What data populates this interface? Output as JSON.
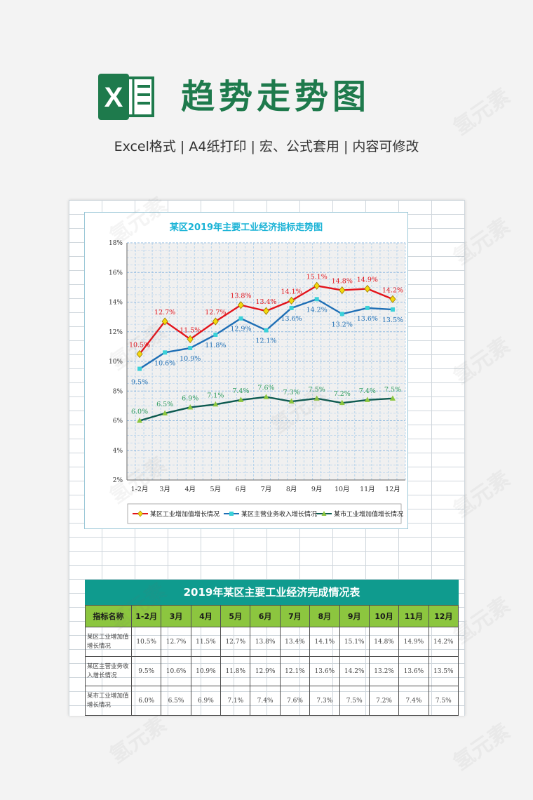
{
  "header": {
    "headline": "趋势走势图",
    "subline": "Excel格式 |  A4纸打印 | 宏、公式套用 | 内容可修改",
    "logo_letter": "X",
    "logo_icon": "excel-logo-icon"
  },
  "chart_data": {
    "type": "line",
    "title": "某区2019年主要工业经济指标走势图",
    "categories": [
      "1-2月",
      "3月",
      "4月",
      "5月",
      "6月",
      "7月",
      "8月",
      "9月",
      "10月",
      "11月",
      "12月"
    ],
    "y_ticks": [
      "2%",
      "4%",
      "6%",
      "8%",
      "10%",
      "12%",
      "14%",
      "16%",
      "18%"
    ],
    "ylim": [
      2,
      18
    ],
    "grid": true,
    "legend_position": "bottom",
    "series": [
      {
        "name": "某区工业增加值增长情况",
        "color": "#e3141b",
        "marker": "diamond",
        "marker_color": "#f4d80d",
        "values": [
          10.5,
          12.7,
          11.5,
          12.7,
          13.8,
          13.4,
          14.1,
          15.1,
          14.8,
          14.9,
          14.2
        ],
        "labels": [
          "10.5%",
          "12.7%",
          "11.5%",
          "12.7%",
          "13.8%",
          "13.4%",
          "14.1%",
          "15.1%",
          "14.8%",
          "14.9%",
          "14.2%"
        ]
      },
      {
        "name": "某区主营业务收入增长情况",
        "color": "#1f6fb5",
        "marker": "square",
        "marker_color": "#3ad1d9",
        "values": [
          9.5,
          10.6,
          10.9,
          11.8,
          12.9,
          12.1,
          13.6,
          14.2,
          13.2,
          13.6,
          13.5
        ],
        "labels": [
          "9.5%",
          "10.6%",
          "10.9%",
          "11.8%",
          "12.9%",
          "12.1%",
          "13.6%",
          "14.2%",
          "13.2%",
          "13.6%",
          "13.5%"
        ]
      },
      {
        "name": "某市工业增加值增长情况",
        "color": "#0d5a4f",
        "marker": "triangle",
        "marker_color": "#8cc63f",
        "values": [
          6.0,
          6.5,
          6.9,
          7.1,
          7.4,
          7.6,
          7.3,
          7.5,
          7.2,
          7.4,
          7.5
        ],
        "labels": [
          "6.0%",
          "6.5%",
          "6.9%",
          "7.1%",
          "7.4%",
          "7.6%",
          "7.3%",
          "7.5%",
          "7.2%",
          "7.4%",
          "7.5%"
        ]
      }
    ]
  },
  "table": {
    "title": "2019年某区主要工业经济完成情况表",
    "header_first": "指标名称",
    "months": [
      "1-2月",
      "3月",
      "4月",
      "5月",
      "6月",
      "7月",
      "8月",
      "9月",
      "10月",
      "11月",
      "12月"
    ],
    "rows": [
      {
        "name": "某区工业增加值增长情况",
        "values": [
          "10.5%",
          "12.7%",
          "11.5%",
          "12.7%",
          "13.8%",
          "13.4%",
          "14.1%",
          "15.1%",
          "14.8%",
          "14.9%",
          "14.2%"
        ]
      },
      {
        "name": "某区主营业务收入增长情况",
        "values": [
          "9.5%",
          "10.6%",
          "10.9%",
          "11.8%",
          "12.9%",
          "12.1%",
          "13.6%",
          "14.2%",
          "13.2%",
          "13.6%",
          "13.5%"
        ]
      },
      {
        "name": "某市工业增加值增长情况",
        "values": [
          "6.0%",
          "6.5%",
          "6.9%",
          "7.1%",
          "7.4%",
          "7.6%",
          "7.3%",
          "7.5%",
          "7.2%",
          "7.4%",
          "7.5%"
        ]
      }
    ]
  },
  "watermark": "氢元素"
}
